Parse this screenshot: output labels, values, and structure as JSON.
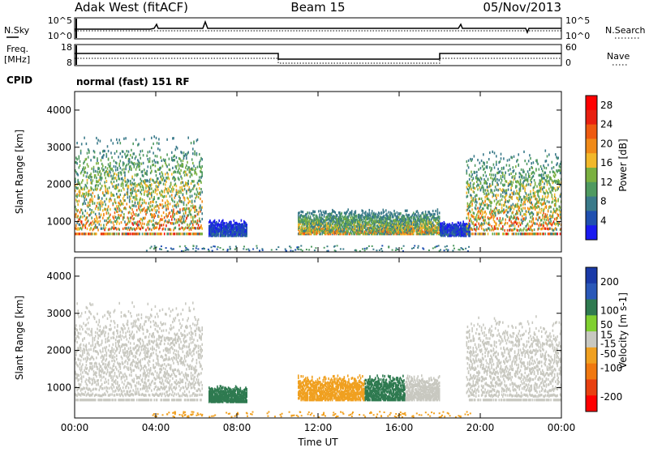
{
  "header": {
    "station": "Adak West (fitACF)",
    "beam": "Beam 15",
    "date": "05/Nov/2013"
  },
  "status_panels": {
    "left_top_label": "N.Sky",
    "left_top_ticks": [
      "10^5",
      "10^0"
    ],
    "right_top_label": "N.Search",
    "right_top_ticks": [
      "10^5",
      "10^0"
    ],
    "left_mid_label_1": "Freq.",
    "left_mid_label_2": "[MHz]",
    "left_mid_ticks": [
      "18",
      "8"
    ],
    "right_mid_label": "Nave",
    "right_mid_ticks": [
      "60",
      "0"
    ],
    "cpid_label": "CPID",
    "cpid_text": "normal (fast) 151 RF"
  },
  "colors": {
    "power_scale": [
      "#1a1af0",
      "#2050b0",
      "#3a7a8a",
      "#4f9a60",
      "#7ab040",
      "#f2b82a",
      "#f08a18",
      "#ee5a10",
      "#e82010",
      "#ff0000"
    ],
    "velocity_scale": [
      "#1a3aa8",
      "#2a58b8",
      "#2f7a50",
      "#80d030",
      "#c8c8c0",
      "#f0a020",
      "#f07810",
      "#e84010",
      "#ff0000"
    ]
  },
  "chart_data": [
    {
      "type": "heatmap",
      "quantity": "Power",
      "ylabel": "Slant Range [km]",
      "xlabel": "",
      "ylim": [
        180,
        4500
      ],
      "xlim": [
        "00:00",
        "24:00"
      ],
      "yticks": [
        1000,
        2000,
        3000,
        4000
      ],
      "colorbar_label": "Power [dB]",
      "colorbar_ticks": [
        4,
        8,
        12,
        16,
        20,
        24,
        28
      ],
      "colorbar_range": [
        0,
        30
      ],
      "echo_regions": [
        {
          "t_start": 0.0,
          "t_end": 6.3,
          "r_low": 700,
          "r_high": 3500,
          "peak_power": 28
        },
        {
          "t_start": 6.6,
          "t_end": 8.5,
          "r_low": 650,
          "r_high": 1100,
          "peak_power": 8
        },
        {
          "t_start": 11.0,
          "t_end": 18.0,
          "r_low": 700,
          "r_high": 1400,
          "peak_power": 24
        },
        {
          "t_start": 18.0,
          "t_end": 19.5,
          "r_low": 650,
          "r_high": 1050,
          "peak_power": 8
        },
        {
          "t_start": 19.3,
          "t_end": 24.0,
          "r_low": 700,
          "r_high": 3100,
          "peak_power": 28
        }
      ]
    },
    {
      "type": "heatmap",
      "quantity": "Velocity",
      "ylabel": "Slant Range [km]",
      "xlabel": "Time UT",
      "ylim": [
        180,
        4500
      ],
      "xlim": [
        "00:00",
        "24:00"
      ],
      "yticks": [
        1000,
        2000,
        3000,
        4000
      ],
      "xticks": [
        "00:00",
        "04:00",
        "08:00",
        "12:00",
        "16:00",
        "20:00",
        "00:00"
      ],
      "colorbar_label": "Velocity [m s-1]",
      "colorbar_ticks": [
        200,
        100,
        50,
        15,
        -15,
        -50,
        -100,
        -200
      ],
      "colorbar_range": [
        -250,
        250
      ],
      "echo_regions": [
        {
          "t_start": 0.0,
          "t_end": 6.3,
          "r_low": 700,
          "r_high": 3500,
          "velocity": 0
        },
        {
          "t_start": 6.6,
          "t_end": 8.5,
          "r_low": 650,
          "r_high": 1100,
          "velocity": 60
        },
        {
          "t_start": 11.0,
          "t_end": 14.3,
          "r_low": 700,
          "r_high": 1400,
          "velocity": -40
        },
        {
          "t_start": 14.3,
          "t_end": 16.3,
          "r_low": 700,
          "r_high": 1400,
          "velocity": 60
        },
        {
          "t_start": 16.3,
          "t_end": 18.0,
          "r_low": 700,
          "r_high": 1400,
          "velocity": 0
        },
        {
          "t_start": 19.3,
          "t_end": 24.0,
          "r_low": 700,
          "r_high": 3100,
          "velocity": 0
        }
      ]
    }
  ]
}
